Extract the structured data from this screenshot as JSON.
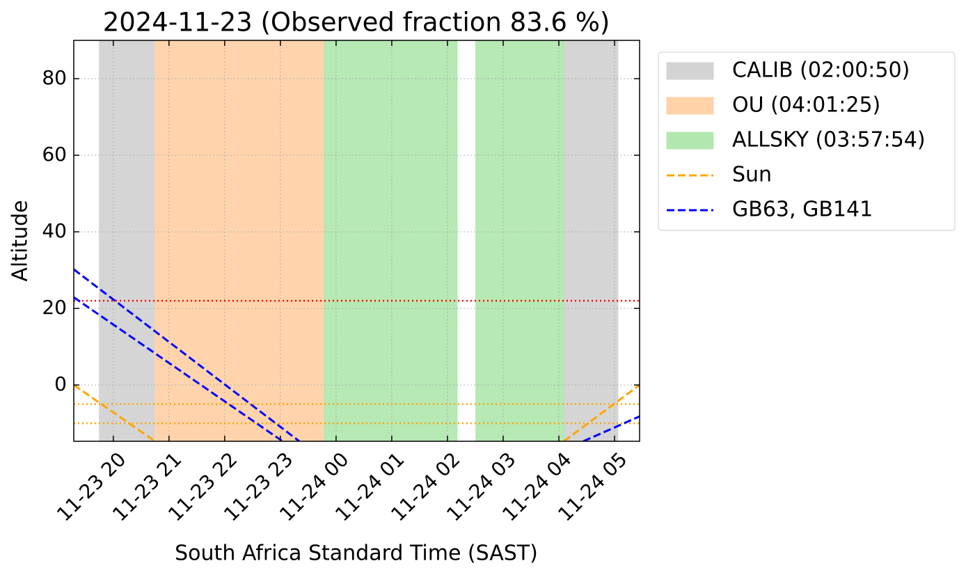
{
  "chart_data": {
    "type": "line",
    "title": "2024-11-23 (Observed fraction 83.6 %)",
    "xlabel": "South Africa Standard Time (SAST)",
    "ylabel": "Altitude",
    "xlim": [
      19.29,
      29.45
    ],
    "ylim": [
      -14.7,
      90
    ],
    "xticks": [
      {
        "value": 20,
        "label": "11-23 20"
      },
      {
        "value": 21,
        "label": "11-23 21"
      },
      {
        "value": 22,
        "label": "11-23 22"
      },
      {
        "value": 23,
        "label": "11-23 23"
      },
      {
        "value": 24,
        "label": "11-24 00"
      },
      {
        "value": 25,
        "label": "11-24 01"
      },
      {
        "value": 26,
        "label": "11-24 02"
      },
      {
        "value": 27,
        "label": "11-24 03"
      },
      {
        "value": 28,
        "label": "11-24 04"
      },
      {
        "value": 29,
        "label": "11-24 05"
      }
    ],
    "yticks": [
      0,
      20,
      40,
      60,
      80
    ],
    "grid": true,
    "spans": [
      {
        "name": "CALIB (02:00:50)",
        "color": "#d3d3d3",
        "ranges": [
          [
            19.75,
            20.75
          ],
          [
            28.09,
            29.06
          ]
        ]
      },
      {
        "name": "OU (04:01:25)",
        "color": "#ffd2a8",
        "ranges": [
          [
            20.75,
            23.79
          ]
        ]
      },
      {
        "name": "ALLSKY (03:57:54)",
        "color": "#b2e8b0",
        "ranges": [
          [
            23.79,
            26.175
          ],
          [
            26.51,
            28.09
          ]
        ]
      }
    ],
    "hlines": [
      {
        "value": 22,
        "color": "red"
      },
      {
        "value": -5,
        "color": "orange"
      },
      {
        "value": -10,
        "color": "orange"
      }
    ],
    "series": [
      {
        "name": "Sun",
        "color": "orange",
        "x": [
          19.29,
          20.75,
          null,
          28.09,
          29.45
        ],
        "values": [
          0,
          -14.7,
          null,
          -14.7,
          0
        ]
      },
      {
        "name": "GB63, GB141",
        "color": "blue",
        "x": [
          19.29,
          23.34,
          null,
          19.29,
          23.04,
          null,
          28.44,
          29.45
        ],
        "values": [
          30.2,
          -14.7,
          null,
          22.9,
          -14.7,
          null,
          -14.7,
          -8.2
        ]
      }
    ]
  }
}
